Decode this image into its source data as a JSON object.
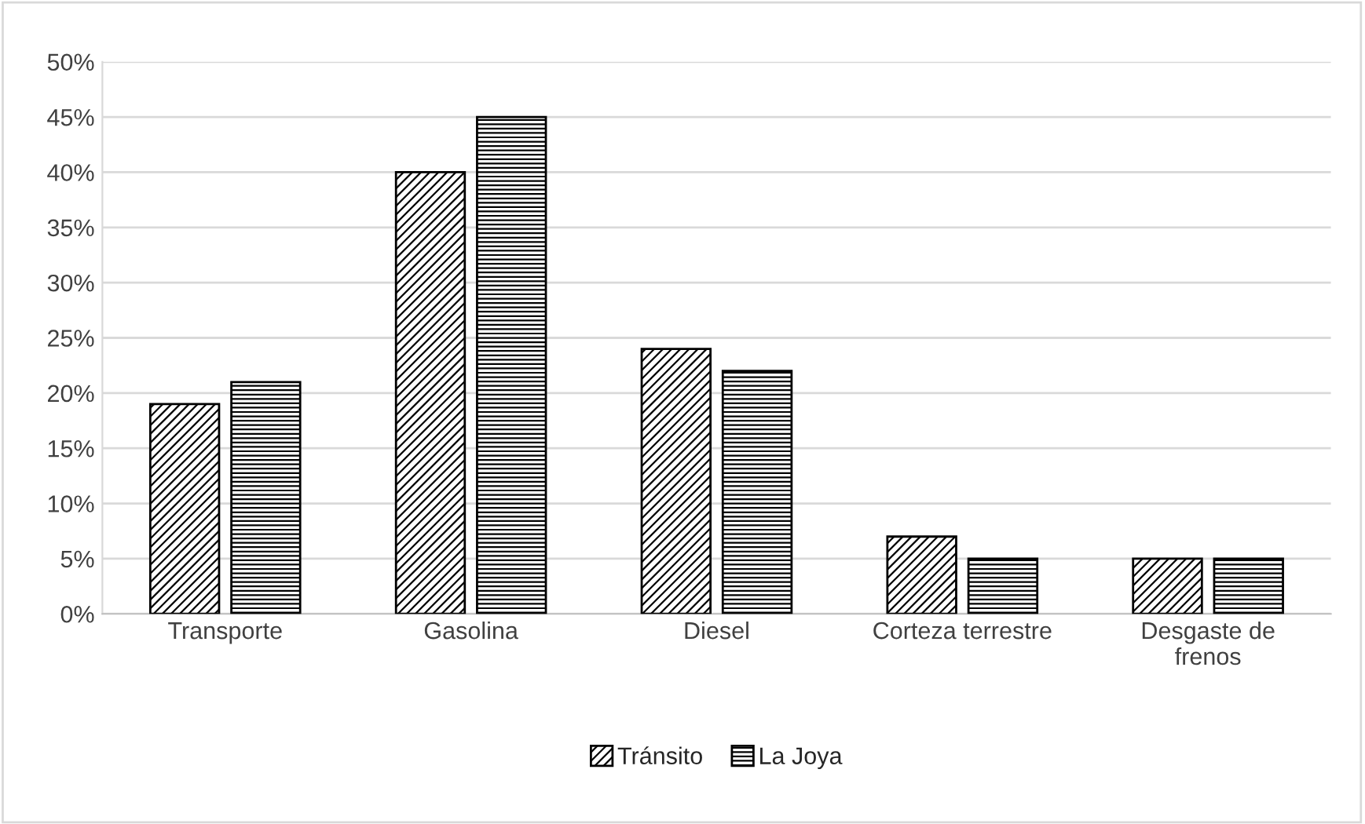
{
  "chart_data": {
    "type": "bar",
    "categories": [
      "Transporte",
      "Gasolina",
      "Diesel",
      "Corteza terrestre",
      "Desgaste de frenos"
    ],
    "series": [
      {
        "name": "Tránsito",
        "color": "#000000",
        "values": [
          19,
          40,
          24,
          7,
          5
        ]
      },
      {
        "name": "La Joya",
        "color": "#000000",
        "values": [
          21,
          45,
          22,
          5,
          5
        ]
      }
    ],
    "ylim": [
      0,
      50
    ],
    "yticks": [
      {
        "value": 0,
        "label": "0%"
      },
      {
        "value": 5,
        "label": "5%"
      },
      {
        "value": 10,
        "label": "10%"
      },
      {
        "value": 15,
        "label": "15%"
      },
      {
        "value": 20,
        "label": "20%"
      },
      {
        "value": 25,
        "label": "25%"
      },
      {
        "value": 30,
        "label": "30%"
      },
      {
        "value": 35,
        "label": "35%"
      },
      {
        "value": 40,
        "label": "40%"
      },
      {
        "value": 45,
        "label": "45%"
      },
      {
        "value": 50,
        "label": "50%"
      }
    ],
    "grid": "y",
    "legend": "bottom"
  }
}
